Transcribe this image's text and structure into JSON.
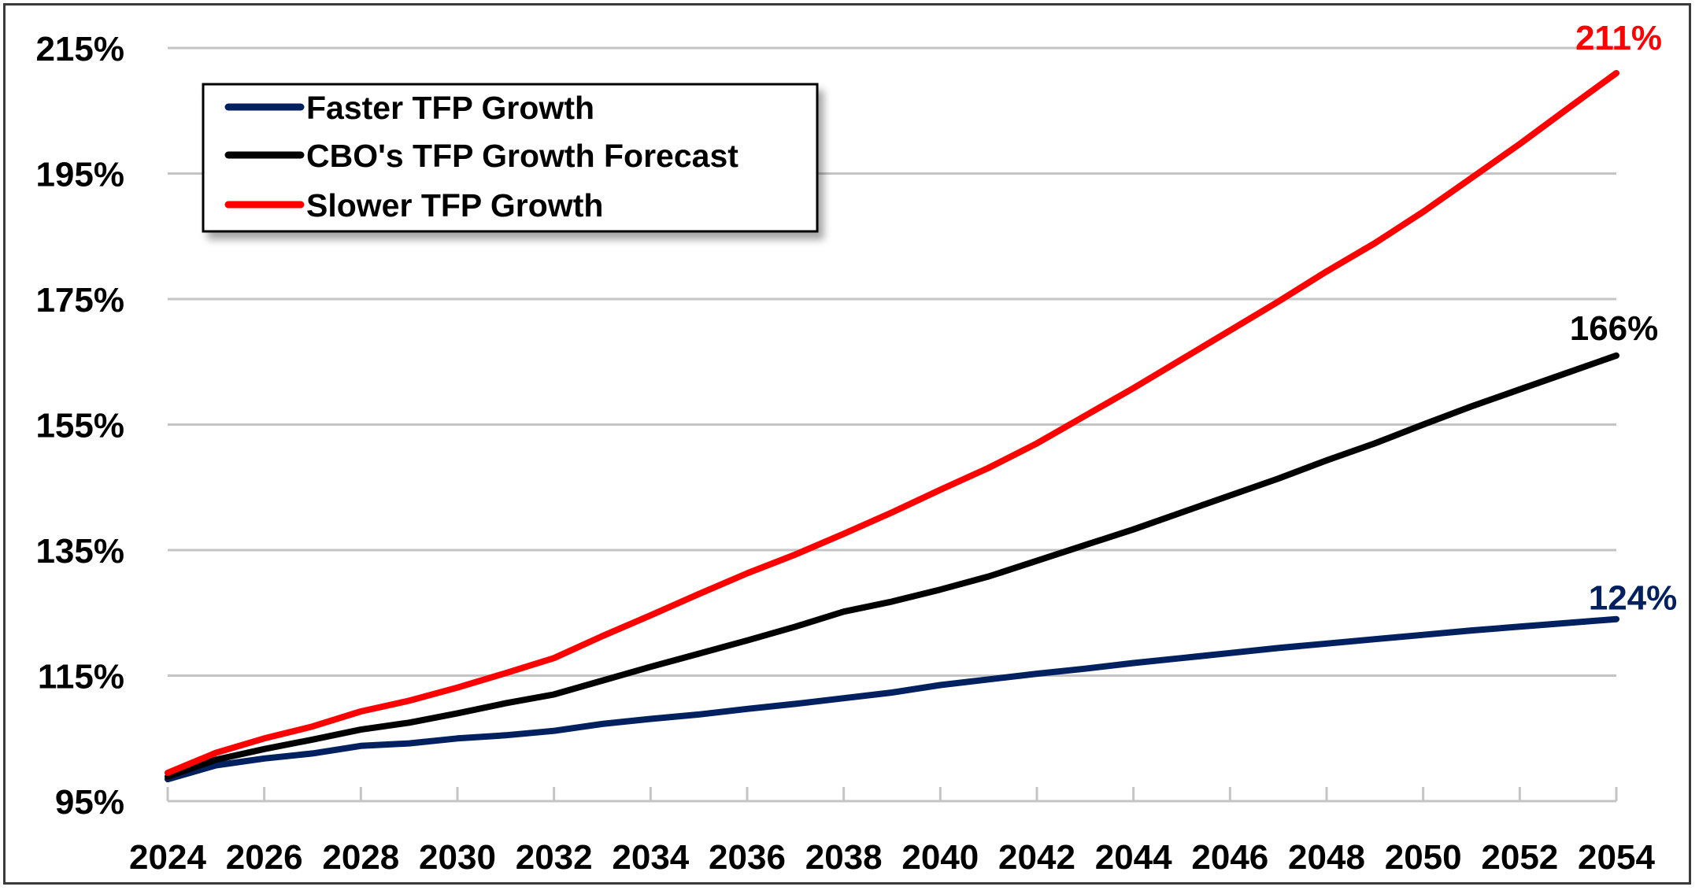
{
  "chart_data": {
    "type": "line",
    "title": "",
    "xlabel": "",
    "ylabel": "",
    "x": [
      2024,
      2025,
      2026,
      2027,
      2028,
      2029,
      2030,
      2031,
      2032,
      2033,
      2034,
      2035,
      2036,
      2037,
      2038,
      2039,
      2040,
      2041,
      2042,
      2043,
      2044,
      2045,
      2046,
      2047,
      2048,
      2049,
      2050,
      2051,
      2052,
      2053,
      2054
    ],
    "x_tick_labels": [
      "2024",
      "2026",
      "2028",
      "2030",
      "2032",
      "2034",
      "2036",
      "2038",
      "2040",
      "2042",
      "2044",
      "2046",
      "2048",
      "2050",
      "2052",
      "2054"
    ],
    "y_tick_labels": [
      "95%",
      "115%",
      "135%",
      "155%",
      "175%",
      "195%",
      "215%"
    ],
    "y_ticks": [
      95,
      115,
      135,
      155,
      175,
      195,
      215
    ],
    "ylim": [
      95,
      215
    ],
    "xlim": [
      2024,
      2054
    ],
    "grid": "horizontal",
    "legend_position": "top-left",
    "series": [
      {
        "name": "Faster TFP Growth",
        "color": "#002060",
        "values": [
          98.5,
          100.7,
          101.8,
          102.6,
          103.8,
          104.2,
          105.0,
          105.5,
          106.2,
          107.3,
          108.1,
          108.8,
          109.7,
          110.5,
          111.4,
          112.3,
          113.5,
          114.4,
          115.3,
          116.1,
          117.0,
          117.8,
          118.6,
          119.4,
          120.1,
          120.8,
          121.5,
          122.2,
          122.8,
          123.4,
          124.0
        ],
        "end_label": "124%"
      },
      {
        "name": "CBO's TFP Growth Forecast",
        "color": "#000000",
        "values": [
          98.9,
          101.6,
          103.3,
          104.8,
          106.4,
          107.5,
          109.0,
          110.6,
          112.0,
          114.2,
          116.4,
          118.5,
          120.6,
          122.8,
          125.2,
          126.8,
          128.7,
          130.8,
          133.3,
          135.8,
          138.3,
          141.0,
          143.7,
          146.4,
          149.3,
          152.0,
          155.0,
          157.9,
          160.6,
          163.3,
          166.0
        ],
        "end_label": "166%"
      },
      {
        "name": "Slower TFP Growth",
        "color": "#FF0000",
        "values": [
          99.5,
          102.7,
          105.0,
          106.9,
          109.3,
          111.0,
          113.1,
          115.4,
          117.8,
          121.3,
          124.6,
          128.0,
          131.3,
          134.3,
          137.6,
          141.0,
          144.6,
          148.1,
          152.0,
          156.4,
          160.8,
          165.4,
          170.0,
          174.6,
          179.4,
          183.9,
          188.9,
          194.3,
          199.7,
          205.4,
          211.0
        ],
        "end_label": "211%"
      }
    ]
  }
}
